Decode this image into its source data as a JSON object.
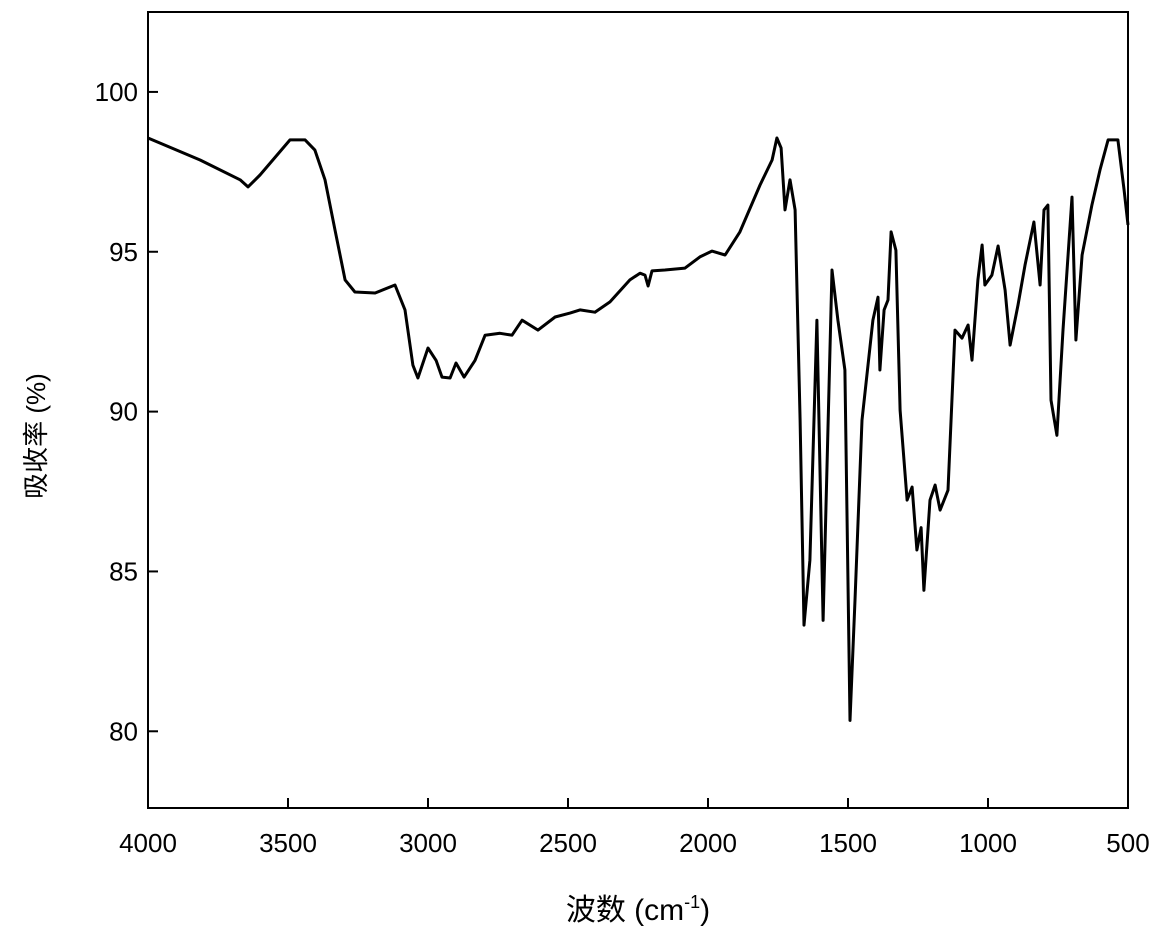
{
  "chart_data": {
    "type": "line",
    "ylabel": "吸收率 (%)",
    "xlabel": {
      "text": "波数 (cm",
      "superscript": "-1",
      "suffix": ")"
    },
    "xlim": [
      4000,
      500
    ],
    "ylim": [
      77.6,
      102.5
    ],
    "xticks": [
      4000,
      3500,
      3000,
      2500,
      2000,
      1500,
      1000,
      500
    ],
    "yticks": [
      80,
      85,
      90,
      95,
      100
    ],
    "series": [
      {
        "color": "#000000",
        "x": [
          4000,
          3814,
          3671,
          3643,
          3600,
          3493,
          3439,
          3404,
          3368,
          3332,
          3296,
          3261,
          3189,
          3118,
          3082,
          3054,
          3036,
          3000,
          2971,
          2950,
          2921,
          2900,
          2871,
          2832,
          2796,
          2743,
          2700,
          2664,
          2607,
          2546,
          2493,
          2457,
          2404,
          2350,
          2279,
          2243,
          2225,
          2214,
          2200,
          2154,
          2082,
          2029,
          1986,
          1939,
          1886,
          1814,
          1771,
          1754,
          1739,
          1725,
          1707,
          1689,
          1671,
          1657,
          1636,
          1611,
          1589,
          1557,
          1536,
          1511,
          1493,
          1475,
          1450,
          1411,
          1393,
          1386,
          1371,
          1357,
          1346,
          1329,
          1314,
          1289,
          1271,
          1254,
          1239,
          1229,
          1207,
          1189,
          1171,
          1143,
          1118,
          1093,
          1071,
          1057,
          1036,
          1021,
          1011,
          986,
          964,
          939,
          921,
          893,
          868,
          836,
          814,
          800,
          786,
          775,
          754,
          732,
          700,
          686,
          664,
          629,
          600,
          571,
          536,
          514,
          500
        ],
        "values": [
          98.56,
          97.87,
          97.25,
          97.03,
          97.4,
          98.5,
          98.5,
          98.18,
          97.25,
          95.68,
          94.12,
          93.74,
          93.71,
          93.96,
          93.18,
          91.45,
          91.05,
          91.99,
          91.6,
          91.08,
          91.05,
          91.52,
          91.08,
          91.6,
          92.39,
          92.45,
          92.39,
          92.86,
          92.55,
          92.96,
          93.08,
          93.18,
          93.11,
          93.43,
          94.12,
          94.33,
          94.27,
          93.93,
          94.4,
          94.43,
          94.49,
          94.84,
          95.02,
          94.9,
          95.62,
          97.09,
          97.87,
          98.56,
          98.25,
          96.31,
          97.25,
          96.31,
          89.73,
          83.32,
          85.35,
          92.86,
          83.47,
          94.43,
          92.86,
          91.3,
          80.34,
          84.1,
          89.73,
          92.86,
          93.58,
          91.3,
          93.18,
          93.49,
          95.62,
          95.05,
          90.04,
          87.23,
          87.64,
          85.67,
          86.37,
          84.41,
          87.23,
          87.7,
          86.92,
          87.54,
          92.55,
          92.3,
          92.71,
          91.61,
          94.12,
          95.21,
          93.96,
          94.27,
          95.18,
          93.8,
          92.08,
          93.33,
          94.58,
          95.93,
          93.96,
          96.31,
          96.46,
          90.36,
          89.26,
          92.55,
          96.71,
          92.24,
          94.9,
          96.46,
          97.56,
          98.5,
          98.5,
          96.93,
          95.84
        ]
      }
    ]
  }
}
